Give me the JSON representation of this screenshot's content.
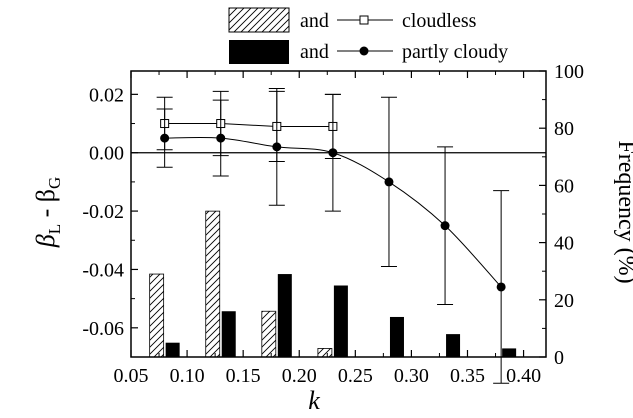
{
  "chart_data": {
    "type": "bar+line",
    "x_axis": {
      "label": "k",
      "range": [
        0.05,
        0.42
      ],
      "ticks": [
        0.05,
        0.1,
        0.15,
        0.2,
        0.25,
        0.3,
        0.35,
        0.4
      ],
      "tick_labels": [
        "0.05",
        "0.10",
        "0.15",
        "0.20",
        "0.25",
        "0.30",
        "0.35",
        "0.40"
      ]
    },
    "y_axis_left": {
      "label_main": "β",
      "label_sub1": "L",
      "label_mid": " - β",
      "label_sub2": "G",
      "range": [
        -0.07,
        0.028
      ],
      "ticks": [
        0.02,
        0.0,
        -0.02,
        -0.04,
        -0.06
      ],
      "tick_labels": [
        "0.02",
        "0.00",
        "-0.02",
        "-0.04",
        "-0.06"
      ]
    },
    "y_axis_right": {
      "label": "Frequency (%)",
      "range": [
        0,
        100
      ],
      "ticks": [
        0,
        20,
        40,
        60,
        80,
        100
      ],
      "tick_labels": [
        "0",
        "20",
        "40",
        "60",
        "80",
        "100"
      ]
    },
    "zero_line": 0.0,
    "legend": {
      "placement": "top-center",
      "entries": [
        {
          "connector": "and",
          "label": "cloudless",
          "bar_style": "hatched",
          "marker": "open-square"
        },
        {
          "connector": "and",
          "label": "partly cloudy",
          "bar_style": "solid-black",
          "marker": "filled-circle"
        }
      ]
    },
    "series": [
      {
        "name": "cloudless",
        "axis": "left",
        "kind": "line",
        "marker": "open-square",
        "x": [
          0.08,
          0.13,
          0.18,
          0.23
        ],
        "y": [
          0.01,
          0.01,
          0.009,
          0.009
        ],
        "error": [
          0.009,
          0.011,
          0.012,
          0.011
        ]
      },
      {
        "name": "partly cloudy",
        "axis": "left",
        "kind": "line",
        "marker": "filled-circle",
        "x": [
          0.08,
          0.13,
          0.18,
          0.23,
          0.28,
          0.33,
          0.38
        ],
        "y": [
          0.005,
          0.005,
          0.002,
          0.0,
          -0.01,
          -0.025,
          -0.046
        ],
        "error": [
          0.01,
          0.013,
          0.02,
          0.02,
          0.029,
          0.027,
          0.033
        ]
      },
      {
        "name": "cloudless",
        "axis": "right",
        "kind": "bar",
        "style": "hatched",
        "x": [
          0.08,
          0.13,
          0.18,
          0.23
        ],
        "values": [
          29,
          51,
          16,
          3
        ]
      },
      {
        "name": "partly cloudy",
        "axis": "right",
        "kind": "bar",
        "style": "solid",
        "x": [
          0.08,
          0.13,
          0.18,
          0.23,
          0.28,
          0.33,
          0.38
        ],
        "values": [
          5,
          16,
          29,
          25,
          14,
          8,
          3
        ]
      }
    ]
  }
}
